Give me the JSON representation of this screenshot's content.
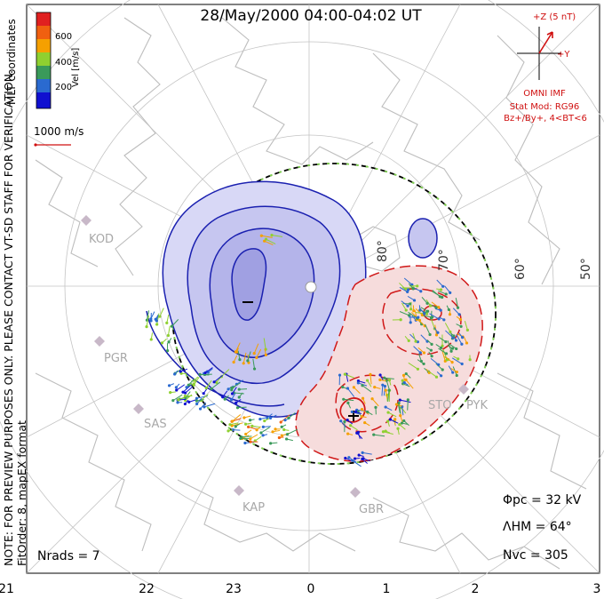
{
  "title": "28/May/2000 04:00-04:02 UT",
  "coordinates_label": "MLT coordinates",
  "colorbar": {
    "label": "Vel [m/s]",
    "ticks": [
      "600",
      "400",
      "200"
    ],
    "colors": [
      "#e02020",
      "#f06010",
      "#f5a000",
      "#8fd030",
      "#3a9a5a",
      "#2a6ad0",
      "#1010d0"
    ]
  },
  "reference_vector": {
    "label": "1000 m/s",
    "color": "#d01010"
  },
  "watermark": {
    "line1": "NOTE: FOR PREVIEW PURPOSES ONLY. PLEASE CONTACT VT-SD STAFF FOR VERIFICATION.",
    "line2": "FitOrder: 8, mapEX format"
  },
  "imf": {
    "z_label": "+Z (5 nT)",
    "y_label": "+Y",
    "source": "OMNI IMF",
    "stat_mod": "Stat Mod: RG96",
    "bin": "Bz+/By+, 4<BT<6",
    "color": "#d01010"
  },
  "stats": {
    "phi_pc": "Φpc  =  32 kV",
    "lambda_hm": "ΛHM  =  64°",
    "n_vc": "Nvc  =  305",
    "n_rads": "Nrads  =  7"
  },
  "mlt_ticks": [
    "21",
    "22",
    "23",
    "0",
    "1",
    "2",
    "3"
  ],
  "latitude_labels": [
    "80°",
    "70°",
    "60°",
    "50°"
  ],
  "radars": [
    "KOD",
    "PGR",
    "SAS",
    "KAP",
    "GBR",
    "STO",
    "PYK"
  ],
  "colors": {
    "negative_cell": "#b8b8ee",
    "positive_cell": "#f6d6d6",
    "negative_contour": "#1a20b0",
    "positive_contour": "#d01818",
    "coastline": "#bdbdbd",
    "grid": "#c4c4c4"
  }
}
